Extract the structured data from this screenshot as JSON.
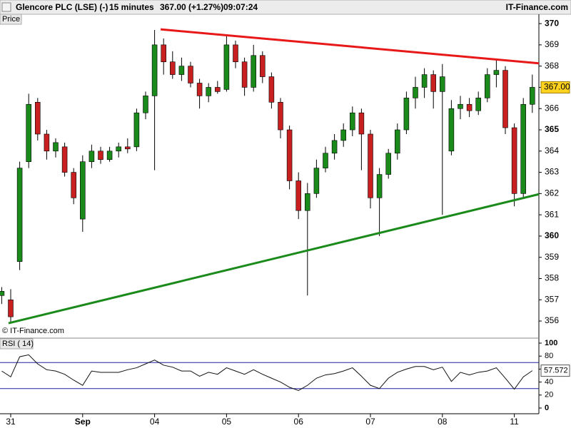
{
  "header": {
    "title": "Glencore PLC (LSE) (-)",
    "interval": "15 minutes",
    "quote": "367.00 (+1.27%)",
    "time": "09:07:24",
    "brand": "IT-Finance.com"
  },
  "chart_data": [
    {
      "type": "candlestick",
      "label": "Price",
      "watermark": "© IT-Finance.com",
      "up_color": "#1a8a1a",
      "down_color": "#c82020",
      "x": [
        -1,
        0,
        1,
        2,
        3,
        4,
        5,
        6,
        7,
        8,
        9,
        10,
        11,
        12,
        13,
        14,
        15,
        16,
        17,
        18,
        19,
        20,
        21,
        22,
        23,
        24,
        25,
        26,
        27,
        28,
        29,
        30,
        31,
        32,
        33,
        34,
        35,
        36,
        37,
        38,
        39,
        40,
        41,
        42,
        43,
        44,
        45,
        46,
        47,
        48,
        49,
        50,
        51,
        52,
        53,
        54,
        55,
        56,
        57,
        58
      ],
      "open": [
        357.2,
        357.0,
        358.8,
        363.5,
        366.3,
        364.8,
        364.0,
        364.2,
        363.0,
        360.8,
        363.5,
        364.0,
        363.6,
        364.0,
        364.2,
        364.2,
        365.8,
        366.6,
        369.0,
        368.2,
        367.6,
        368.0,
        367.2,
        366.6,
        367.0,
        366.9,
        369.0,
        368.2,
        367.0,
        368.5,
        367.5,
        366.3,
        365.0,
        362.6,
        361.2,
        362.0,
        363.2,
        363.9,
        364.5,
        365.0,
        365.8,
        364.8,
        361.8,
        362.9,
        363.9,
        365.0,
        366.5,
        367.0,
        367.6,
        366.8,
        364.0,
        366.0,
        366.2,
        365.9,
        366.5,
        367.6,
        367.8,
        365.1,
        362.0,
        366.2
      ],
      "high": [
        357.6,
        357.5,
        363.5,
        366.7,
        366.5,
        365.0,
        364.6,
        364.4,
        363.2,
        363.8,
        364.3,
        364.2,
        364.2,
        364.4,
        364.6,
        366.0,
        366.8,
        369.7,
        369.3,
        368.7,
        368.4,
        368.2,
        367.4,
        367.2,
        367.3,
        369.5,
        369.2,
        368.4,
        369.0,
        368.7,
        367.7,
        366.5,
        365.2,
        363.0,
        362.5,
        363.6,
        364.2,
        364.8,
        365.3,
        366.1,
        366.0,
        365.0,
        363.2,
        364.1,
        365.3,
        366.8,
        367.5,
        367.9,
        367.8,
        368.1,
        366.4,
        366.6,
        366.5,
        366.8,
        367.9,
        368.3,
        368.0,
        365.3,
        366.5,
        367.6
      ],
      "low": [
        356.8,
        355.9,
        358.4,
        363.2,
        364.5,
        363.6,
        363.7,
        362.8,
        361.5,
        360.2,
        363.2,
        363.4,
        363.5,
        363.7,
        363.9,
        364.0,
        365.5,
        363.1,
        367.6,
        367.4,
        367.3,
        367.0,
        366.0,
        366.3,
        366.7,
        366.8,
        367.9,
        366.6,
        366.8,
        367.2,
        366.0,
        364.6,
        362.2,
        360.8,
        357.2,
        361.8,
        363.0,
        363.6,
        364.2,
        364.7,
        363.1,
        361.3,
        360.0,
        362.7,
        363.6,
        364.8,
        366.0,
        366.5,
        366.0,
        361.0,
        363.8,
        365.5,
        365.6,
        365.7,
        366.3,
        367.0,
        364.8,
        361.4,
        361.8,
        365.8
      ],
      "close": [
        357.4,
        356.2,
        363.2,
        366.2,
        364.8,
        364.0,
        364.4,
        363.0,
        361.8,
        363.5,
        364.0,
        363.6,
        364.0,
        364.2,
        364.1,
        365.8,
        366.6,
        369.0,
        368.2,
        367.6,
        368.0,
        367.2,
        366.6,
        367.0,
        366.8,
        369.0,
        368.2,
        367.0,
        368.5,
        367.5,
        366.3,
        365.0,
        362.6,
        361.2,
        362.0,
        363.2,
        363.9,
        364.5,
        365.0,
        365.8,
        364.8,
        361.8,
        362.9,
        363.9,
        365.0,
        366.5,
        367.0,
        367.6,
        366.8,
        367.5,
        366.0,
        366.2,
        365.9,
        366.5,
        367.6,
        367.8,
        365.1,
        362.0,
        366.2,
        367.0
      ],
      "last_price": {
        "value": 367.0,
        "label": "367.00"
      },
      "trendlines": [
        {
          "color": "#e81818",
          "x": [
            16.67,
            58.73
          ],
          "y": [
            369.73,
            368.13
          ]
        },
        {
          "color": "#1a8a1a",
          "x": [
            -0.24,
            58.73
          ],
          "y": [
            355.9,
            361.97
          ]
        }
      ],
      "xlim": [
        -1.19,
        58.73
      ],
      "ylim": [
        355.33,
        370.44
      ],
      "yticks": [
        356,
        357,
        358,
        359,
        360,
        361,
        362,
        363,
        364,
        365,
        366,
        367,
        368,
        369,
        370
      ]
    },
    {
      "type": "line",
      "label": "RSI ( 14)",
      "color": "#111111",
      "band_color": "#2020a0",
      "bands": [
        30,
        70
      ],
      "x": [
        -1,
        0,
        1,
        2,
        3,
        4,
        5,
        6,
        7,
        8,
        9,
        10,
        11,
        12,
        13,
        14,
        15,
        16,
        17,
        18,
        19,
        20,
        21,
        22,
        23,
        24,
        25,
        26,
        27,
        28,
        29,
        30,
        31,
        32,
        33,
        34,
        35,
        36,
        37,
        38,
        39,
        40,
        41,
        42,
        43,
        44,
        45,
        46,
        47,
        48,
        49,
        50,
        51,
        52,
        53,
        54,
        55,
        56,
        57,
        58
      ],
      "values": [
        57,
        48,
        79,
        82,
        68,
        59,
        57,
        52,
        43,
        35,
        57,
        55,
        55,
        55,
        59,
        62,
        68,
        74,
        66,
        63,
        57,
        57,
        49,
        55,
        52,
        62,
        57,
        52,
        59,
        52,
        46,
        40,
        32,
        27,
        35,
        46,
        51,
        53,
        57,
        62,
        49,
        35,
        30,
        46,
        55,
        60,
        64,
        64,
        59,
        63,
        41,
        55,
        51,
        55,
        57,
        62,
        46,
        29,
        48,
        57.572
      ],
      "xlim": [
        -1.19,
        58.73
      ],
      "ylim": [
        -8.8,
        103.3
      ],
      "yticks": [
        0,
        20,
        40,
        60,
        80,
        100
      ],
      "xticks": [
        {
          "value": 0,
          "label": "31"
        },
        {
          "value": 8,
          "label": "Sep"
        },
        {
          "value": 16,
          "label": "04"
        },
        {
          "value": 24,
          "label": "05"
        },
        {
          "value": 32,
          "label": "06"
        },
        {
          "value": 40,
          "label": "07"
        },
        {
          "value": 48,
          "label": "08"
        },
        {
          "value": 56,
          "label": "11"
        }
      ]
    }
  ]
}
